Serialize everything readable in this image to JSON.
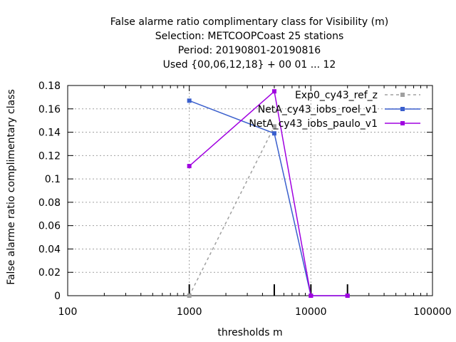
{
  "chart_data": {
    "type": "line",
    "title_lines": [
      "False alarme ratio complimentary class  for Visibility (m)",
      "Selection: METCOOPCoast     25 stations",
      "Period: 20190801-20190816",
      "Used {00,06,12,18} + 00 01 ... 12"
    ],
    "xlabel": "thresholds m",
    "ylabel": "False alarme ratio complimentary class",
    "xscale": "log",
    "xlim": [
      100,
      100000
    ],
    "ylim": [
      0,
      0.18
    ],
    "xticks": [
      100,
      1000,
      10000,
      100000
    ],
    "xtick_labels": [
      "100",
      "1000",
      "10000",
      "100000"
    ],
    "yticks": [
      0,
      0.02,
      0.04,
      0.06,
      0.08,
      0.1,
      0.12,
      0.14,
      0.16,
      0.18
    ],
    "ytick_labels": [
      "0",
      "0.02",
      "0.04",
      "0.06",
      "0.08",
      "0.1",
      "0.12",
      "0.14",
      "0.16",
      "0.18"
    ],
    "threshold_marks": [
      1000,
      5000,
      10000,
      20000
    ],
    "grid": true,
    "legend_position": "top-right",
    "series": [
      {
        "name": "Exp0_cy43_ref_z",
        "color": "#a0a0a0",
        "dash": true,
        "x": [
          1000,
          5000
        ],
        "values": [
          0.0,
          0.145
        ]
      },
      {
        "name": "NetA_cy43_iobs_roel_v1",
        "color": "#3a5fcd",
        "dash": false,
        "x": [
          1000,
          5000,
          10000,
          20000
        ],
        "values": [
          0.167,
          0.139,
          0.0,
          0.0
        ]
      },
      {
        "name": "NetA_cy43_iobs_paulo_v1",
        "color": "#a000e0",
        "dash": false,
        "x": [
          1000,
          5000,
          10000,
          20000
        ],
        "values": [
          0.111,
          0.175,
          0.0,
          0.0
        ]
      }
    ]
  }
}
